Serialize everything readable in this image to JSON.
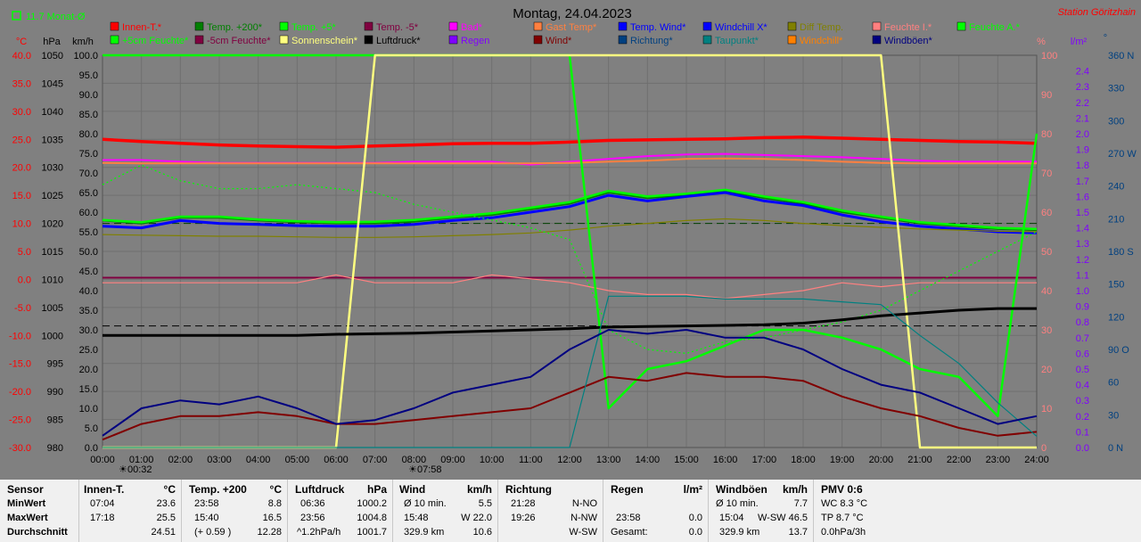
{
  "header": {
    "title": "Montag, 24.04.2023",
    "station": "Station Göritzhain",
    "month_avg": "11.7 Monat-Ø"
  },
  "axis_units": {
    "celsius": "°C",
    "hpa": "hPa",
    "kmh": "km/h",
    "percent": "%",
    "lm2": "l/m²",
    "deg": "°"
  },
  "axes": {
    "celsius": [
      "40.0",
      "35.0",
      "30.0",
      "25.0",
      "20.0",
      "15.0",
      "10.0",
      "5.0",
      "0.0",
      "-5.0",
      "-10.0",
      "-15.0",
      "-20.0",
      "-25.0",
      "-30.0"
    ],
    "hpa": [
      "1050",
      "1045",
      "1040",
      "1035",
      "1030",
      "1025",
      "1020",
      "1015",
      "1010",
      "1005",
      "1000",
      "995",
      "990",
      "985",
      "980"
    ],
    "kmh": [
      "100.0",
      "95.0",
      "90.0",
      "85.0",
      "80.0",
      "75.0",
      "70.0",
      "65.0",
      "60.0",
      "55.0",
      "50.0",
      "45.0",
      "40.0",
      "35.0",
      "30.0",
      "25.0",
      "20.0",
      "15.0",
      "10.0",
      "5.0",
      "0.0"
    ],
    "percent": [
      "100",
      "90",
      "80",
      "70",
      "60",
      "50",
      "40",
      "30",
      "20",
      "10",
      "0"
    ],
    "rain": [
      "2.4",
      "2.3",
      "2.2",
      "2.1",
      "2.0",
      "1.9",
      "1.8",
      "1.7",
      "1.6",
      "1.5",
      "1.4",
      "1.3",
      "1.2",
      "1.1",
      "1.0",
      "0.9",
      "0.8",
      "0.7",
      "0.6",
      "0.5",
      "0.4",
      "0.3",
      "0.2",
      "0.1",
      "0.0"
    ],
    "direction": [
      "360 N",
      "330",
      "300",
      "270 W",
      "240",
      "210",
      "180 S",
      "150",
      "120",
      "90 O",
      "60",
      "30",
      "0 N"
    ],
    "time": [
      "00:00",
      "01:00",
      "02:00",
      "03:00",
      "04:00",
      "05:00",
      "06:00",
      "07:00",
      "08:00",
      "09:00",
      "10:00",
      "11:00",
      "12:00",
      "13:00",
      "14:00",
      "15:00",
      "16:00",
      "17:00",
      "18:00",
      "19:00",
      "20:00",
      "21:00",
      "22:00",
      "23:00",
      "24:00"
    ],
    "sunrise": "00:32",
    "sunset": "07:58"
  },
  "legend": [
    {
      "label": "Innen-T.*",
      "color": "#ff0000"
    },
    {
      "label": "Temp. +200*",
      "color": "#008000"
    },
    {
      "label": "Temp. +5*",
      "color": "#00ff00"
    },
    {
      "label": "Temp. -5*",
      "color": "#800040"
    },
    {
      "label": "Bad*",
      "color": "#ff00ff"
    },
    {
      "label": "Gast Temp*",
      "color": "#ff8040"
    },
    {
      "label": "Temp. Wind*",
      "color": "#0000ff"
    },
    {
      "label": "Windchill X*",
      "color": "#0000ff"
    },
    {
      "label": "Diff Temp.",
      "color": "#808000"
    },
    {
      "label": "Feuchte I.*",
      "color": "#ff8080"
    },
    {
      "label": "Feuchte A.*",
      "color": "#00ff00"
    },
    {
      "label": "+5cm Feuchte*",
      "color": "#00ff00"
    },
    {
      "label": "-5cm Feuchte*",
      "color": "#800040"
    },
    {
      "label": "Sonnenschein*",
      "color": "#ffff80"
    },
    {
      "label": "Luftdruck*",
      "color": "#000000"
    },
    {
      "label": "Regen",
      "color": "#8000ff"
    },
    {
      "label": "Wind*",
      "color": "#800000"
    },
    {
      "label": "Richtung*",
      "color": "#004080"
    },
    {
      "label": "Taupunkt*",
      "color": "#008080"
    },
    {
      "label": "Windchill*",
      "color": "#ff8000"
    },
    {
      "label": "Windböen*",
      "color": "#000080"
    }
  ],
  "chart_data": {
    "type": "line",
    "x": [
      0,
      1,
      2,
      3,
      4,
      5,
      6,
      7,
      8,
      9,
      10,
      11,
      12,
      13,
      14,
      15,
      16,
      17,
      18,
      19,
      20,
      21,
      22,
      23,
      24
    ],
    "xlabel": "",
    "series": [
      {
        "name": "Innen-T.*",
        "axis": "celsius",
        "color": "#ff0000",
        "values": [
          25.0,
          24.6,
          24.3,
          24.0,
          23.8,
          23.7,
          23.6,
          23.8,
          24.0,
          24.2,
          24.3,
          24.3,
          24.5,
          24.8,
          24.9,
          25.0,
          25.1,
          25.3,
          25.4,
          25.2,
          25.0,
          24.8,
          24.6,
          24.5,
          24.3
        ]
      },
      {
        "name": "Temp. +200*",
        "axis": "celsius",
        "color": "#008000",
        "values": [
          10.5,
          10.0,
          11.0,
          11.0,
          10.5,
          10.2,
          10.0,
          10.0,
          10.3,
          11.0,
          11.5,
          12.5,
          13.5,
          15.5,
          14.5,
          15.0,
          15.8,
          14.5,
          13.5,
          12.0,
          11.0,
          10.0,
          9.5,
          9.0,
          8.8
        ]
      },
      {
        "name": "Temp. +5*",
        "axis": "celsius",
        "color": "#00ff00",
        "values": [
          10.6,
          10.2,
          11.2,
          11.2,
          10.7,
          10.4,
          10.2,
          10.3,
          10.6,
          11.2,
          11.8,
          12.8,
          13.8,
          15.8,
          14.8,
          15.3,
          16.0,
          14.8,
          13.8,
          12.3,
          11.2,
          10.2,
          9.7,
          9.2,
          9.0
        ]
      },
      {
        "name": "Temp. -5*",
        "axis": "celsius",
        "color": "#800040",
        "values": [
          0.3,
          0.3,
          0.3,
          0.3,
          0.3,
          0.3,
          0.3,
          0.3,
          0.3,
          0.3,
          0.3,
          0.3,
          0.3,
          0.3,
          0.3,
          0.3,
          0.3,
          0.3,
          0.3,
          0.3,
          0.3,
          0.3,
          0.3,
          0.3,
          0.3
        ]
      },
      {
        "name": "Bad*",
        "axis": "celsius",
        "color": "#ff00ff",
        "values": [
          21.3,
          21.3,
          21.0,
          20.8,
          20.8,
          20.8,
          20.8,
          20.8,
          21.0,
          21.0,
          21.0,
          20.5,
          21.0,
          21.5,
          22.0,
          22.3,
          22.4,
          22.2,
          22.0,
          21.8,
          21.5,
          21.2,
          21.0,
          21.0,
          21.0
        ]
      },
      {
        "name": "Gast Temp*",
        "axis": "celsius",
        "color": "#ff8040",
        "values": [
          20.8,
          20.7,
          20.7,
          20.7,
          20.7,
          20.7,
          20.7,
          20.7,
          20.7,
          20.7,
          20.7,
          20.7,
          20.8,
          21.0,
          21.2,
          21.5,
          21.6,
          21.5,
          21.3,
          21.0,
          20.8,
          20.7,
          20.7,
          20.7,
          20.7
        ]
      },
      {
        "name": "Temp. Wind*",
        "axis": "celsius",
        "color": "#0000ff",
        "values": [
          9.5,
          9.2,
          10.5,
          10.0,
          9.8,
          9.6,
          9.5,
          9.5,
          9.8,
          10.5,
          11.0,
          12.0,
          13.0,
          15.0,
          14.0,
          14.8,
          15.5,
          14.0,
          13.2,
          11.5,
          10.3,
          9.5,
          9.0,
          8.5,
          8.3
        ]
      },
      {
        "name": "Diff Temp.",
        "axis": "celsius",
        "color": "#808000",
        "values": [
          8.0,
          7.9,
          7.8,
          7.7,
          7.7,
          7.6,
          7.5,
          7.5,
          7.6,
          7.8,
          8.0,
          8.3,
          8.8,
          9.5,
          10.0,
          10.5,
          10.8,
          10.5,
          10.0,
          9.6,
          9.3,
          9.0,
          8.8,
          8.6,
          8.5
        ]
      },
      {
        "name": "Feuchte I.*",
        "axis": "percent",
        "color": "#ff8080",
        "values": [
          42,
          42,
          42,
          42,
          42,
          42,
          44,
          42,
          42,
          42,
          44,
          43,
          42,
          40,
          39,
          39,
          38,
          39,
          40,
          42,
          41,
          42,
          42,
          42,
          42
        ]
      },
      {
        "name": "Feuchte A.*",
        "axis": "percent",
        "color": "#00ff00",
        "values": [
          100,
          100,
          100,
          100,
          100,
          100,
          100,
          100,
          100,
          100,
          100,
          100,
          100,
          10,
          20,
          22,
          26,
          30,
          30,
          28,
          25,
          20,
          18,
          8,
          80
        ]
      },
      {
        "name": "+5cm Feuchte*",
        "axis": "percent",
        "color": "#00ff00",
        "values": [
          67,
          72,
          68,
          66,
          66,
          67,
          66,
          65,
          62,
          60,
          58,
          56,
          53,
          30,
          25,
          24,
          27,
          28,
          30,
          32,
          35,
          40,
          45,
          50,
          55
        ]
      },
      {
        "name": "Sonnenschein*",
        "axis": "percent",
        "color": "#ffff80",
        "values": [
          0,
          0,
          0,
          0,
          0,
          0,
          0,
          100,
          100,
          100,
          100,
          100,
          100,
          100,
          100,
          100,
          100,
          100,
          100,
          100,
          100,
          0,
          0,
          0,
          0
        ]
      },
      {
        "name": "Luftdruck*",
        "axis": "hpa",
        "color": "#000000",
        "values": [
          1000.0,
          1000.0,
          1000.0,
          1000.0,
          1000.0,
          1000.0,
          1000.2,
          1000.3,
          1000.4,
          1000.6,
          1000.8,
          1001.0,
          1001.2,
          1001.5,
          1001.6,
          1001.7,
          1001.8,
          1001.9,
          1002.2,
          1002.8,
          1003.5,
          1004.0,
          1004.5,
          1004.8,
          1004.8
        ]
      },
      {
        "name": "Wind*",
        "axis": "kmh",
        "color": "#800000",
        "values": [
          2,
          6,
          8,
          8,
          9,
          8,
          6,
          6,
          7,
          8,
          9,
          10,
          14,
          18,
          17,
          19,
          18,
          18,
          17,
          13,
          10,
          8,
          5,
          3,
          4
        ]
      },
      {
        "name": "Taupunkt*",
        "axis": "celsius",
        "color": "#008080",
        "values": [
          -30,
          -30,
          -30,
          -30,
          -30,
          -30,
          -30,
          -30,
          -30,
          -30,
          -30,
          -30,
          -30,
          -3.0,
          -3.0,
          -3.0,
          -3.5,
          -3.5,
          -3.5,
          -4.0,
          -4.5,
          -10,
          -15,
          -22,
          -28
        ]
      },
      {
        "name": "Windböen*",
        "axis": "kmh",
        "color": "#000080",
        "values": [
          3,
          10,
          12,
          11,
          13,
          10,
          6,
          7,
          10,
          14,
          16,
          18,
          25,
          30,
          29,
          30,
          28,
          28,
          25,
          20,
          16,
          14,
          10,
          6,
          8
        ]
      }
    ],
    "grid": true,
    "legend_position": "top"
  },
  "stats": {
    "row_labels": {
      "header": "Sensor",
      "min": "MinWert",
      "max": "MaxWert",
      "avg": "Durchschnitt"
    },
    "innen": {
      "title": "Innen-T.",
      "unit": "°C",
      "min_time": "07:04",
      "min": "23.6",
      "max_time": "17:18",
      "max": "25.5",
      "avg": "24.51"
    },
    "temp200": {
      "title": "Temp. +200",
      "unit": "°C",
      "min_time": "23:58",
      "min": "8.8",
      "max_time": "15:40",
      "max": "16.5",
      "avg_diff": "(+ 0.59 )",
      "avg": "12.28"
    },
    "luftdruck": {
      "title": "Luftdruck",
      "unit": "hPa",
      "min_time": "06:36",
      "min": "1000.2",
      "max_time": "23:56",
      "max": "1004.8",
      "avg_trend": "^1.2hPa/h",
      "avg": "1001.7"
    },
    "wind": {
      "title": "Wind",
      "unit": "km/h",
      "min_label": "Ø 10 min.",
      "min": "5.5",
      "max_time": "15:48",
      "max": "W 22.0",
      "avg_dist": "329.9 km",
      "avg": "10.6"
    },
    "richtung": {
      "title": "Richtung",
      "min_time": "21:28",
      "min": "N-NO",
      "max_time": "19:26",
      "max": "N-NW",
      "avg": "W-SW"
    },
    "regen": {
      "title": "Regen",
      "unit": "l/m²",
      "max_time": "23:58",
      "max": "0.0",
      "avg_label": "Gesamt:",
      "avg": "0.0"
    },
    "windboeen": {
      "title": "Windböen",
      "unit": "km/h",
      "min_label": "Ø 10 min.",
      "min": "7.7",
      "max_time": "15:04",
      "max": "W-SW 46.5",
      "avg_dist": "329.9 km",
      "avg": "13.7"
    },
    "pmv": {
      "title": "PMV 0:6",
      "wc": "WC 8.3 °C",
      "tp": "TP 8.7 °C",
      "rate": "0.0hPa/3h"
    }
  }
}
